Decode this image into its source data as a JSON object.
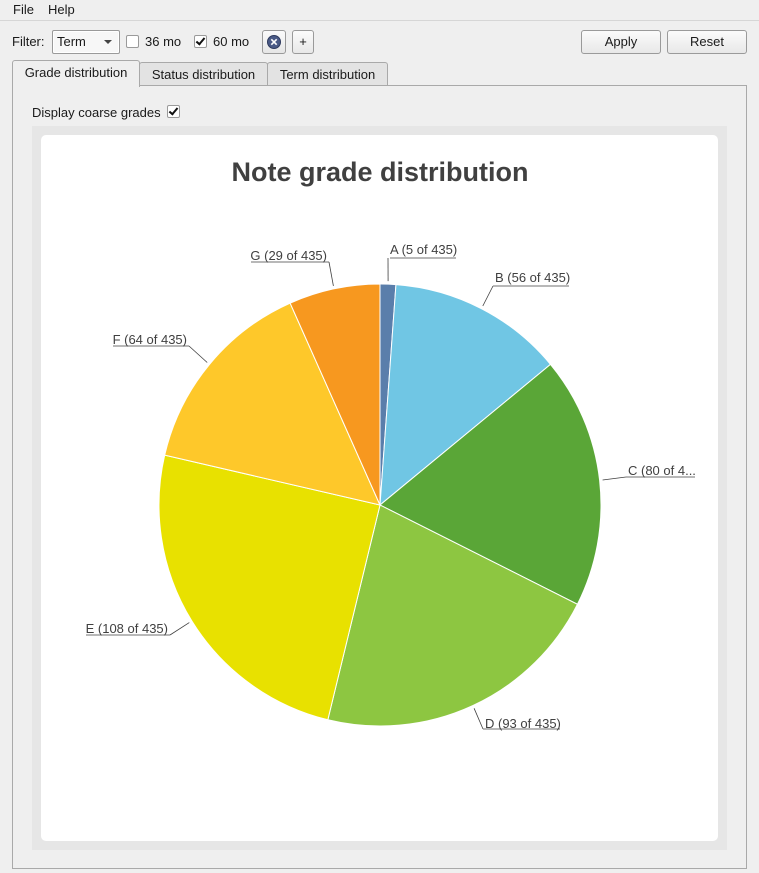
{
  "menubar": {
    "file": "File",
    "help": "Help"
  },
  "toolbar": {
    "filter_label": "Filter:",
    "filter_value": "Term",
    "option_36": "36 mo",
    "option_36_checked": false,
    "option_60": "60 mo",
    "option_60_checked": true,
    "add_label": "+",
    "apply_label": "Apply",
    "reset_label": "Reset"
  },
  "tabs": [
    {
      "label": "Grade distribution",
      "active": true
    },
    {
      "label": "Status distribution",
      "active": false
    },
    {
      "label": "Term distribution",
      "active": false
    }
  ],
  "options": {
    "coarse_label": "Display coarse grades",
    "coarse_checked": true
  },
  "chart_data": {
    "type": "pie",
    "title": "Note grade distribution",
    "total": 435,
    "slices": [
      {
        "name": "A",
        "value": 5,
        "label": "A (5 of 435)",
        "color": "#5a7eab"
      },
      {
        "name": "B",
        "value": 56,
        "label": "B (56 of 435)",
        "color": "#70c6e4"
      },
      {
        "name": "C",
        "value": 80,
        "label": "C (80 of 4...",
        "color": "#5aa637"
      },
      {
        "name": "D",
        "value": 93,
        "label": "D (93 of 435)",
        "color": "#8dc641"
      },
      {
        "name": "E",
        "value": 108,
        "label": "E (108 of 435)",
        "color": "#e8e100"
      },
      {
        "name": "F",
        "value": 64,
        "label": "F (64 of 435)",
        "color": "#fec82a"
      },
      {
        "name": "G",
        "value": 29,
        "label": "G (29 of 435)",
        "color": "#f7981f"
      }
    ]
  }
}
